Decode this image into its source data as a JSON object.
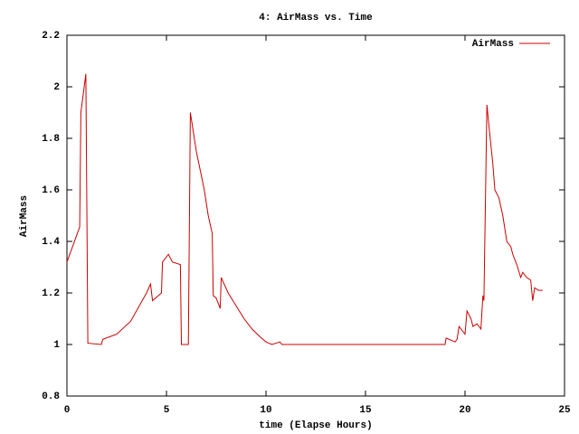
{
  "chart_data": {
    "type": "line",
    "title": "4: AirMass vs. Time",
    "x_label": "time (Elapse Hours)",
    "y_label": "AirMass",
    "x": [
      0,
      0.64,
      0.7,
      0.95,
      1.05,
      1.73,
      1.8,
      2.5,
      3.2,
      4.0,
      4.2,
      4.3,
      4.6,
      4.75,
      4.8,
      5.1,
      5.3,
      5.7,
      5.75,
      6.1,
      6.2,
      6.5,
      6.9,
      7.1,
      7.3,
      7.35,
      7.5,
      7.7,
      7.75,
      8.1,
      8.5,
      8.9,
      9.3,
      9.7,
      10.0,
      10.3,
      10.7,
      10.8,
      19.0,
      19.05,
      19.5,
      19.6,
      19.7,
      19.9,
      20.0,
      20.1,
      20.3,
      20.4,
      20.6,
      20.8,
      20.9,
      20.95,
      21.1,
      21.2,
      21.4,
      21.5,
      21.7,
      21.9,
      22.1,
      22.3,
      22.4,
      22.6,
      22.8,
      22.9,
      23.1,
      23.3,
      23.4,
      23.5,
      23.7,
      23.9
    ],
    "series": [
      {
        "name": "AirMass",
        "color": "#cc0000",
        "values": [
          1.32,
          1.456,
          1.9,
          2.05,
          1.005,
          1.0,
          1.02,
          1.04,
          1.09,
          1.2,
          1.235,
          1.17,
          1.19,
          1.2,
          1.32,
          1.35,
          1.32,
          1.31,
          1.0,
          1.0,
          1.9,
          1.75,
          1.6,
          1.5,
          1.43,
          1.19,
          1.18,
          1.14,
          1.26,
          1.2,
          1.15,
          1.1,
          1.06,
          1.03,
          1.01,
          1.0,
          1.01,
          1.0,
          1.0,
          1.025,
          1.01,
          1.02,
          1.07,
          1.05,
          1.04,
          1.13,
          1.1,
          1.07,
          1.08,
          1.06,
          1.19,
          1.17,
          1.93,
          1.85,
          1.7,
          1.6,
          1.57,
          1.5,
          1.4,
          1.38,
          1.35,
          1.31,
          1.26,
          1.28,
          1.26,
          1.25,
          1.17,
          1.22,
          1.21,
          1.21
        ]
      }
    ],
    "xlim": [
      0,
      25
    ],
    "xticks": [
      0,
      5,
      10,
      15,
      20,
      25
    ],
    "ylim": [
      0.8,
      2.2
    ],
    "yticks": [
      0.8,
      1,
      1.2,
      1.4,
      1.6,
      1.8,
      2,
      2.2
    ],
    "legend": "top-right"
  }
}
